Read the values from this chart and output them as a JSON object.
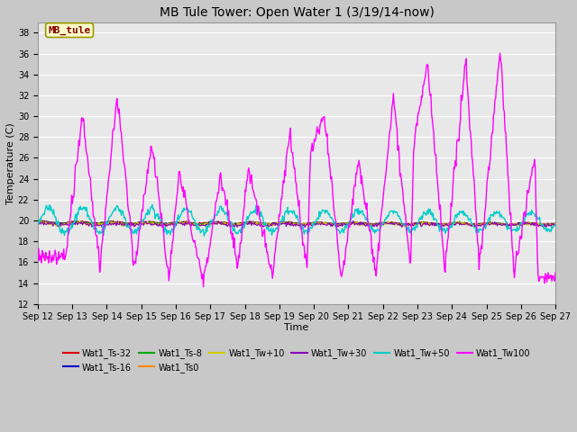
{
  "title": "MB Tule Tower: Open Water 1 (3/19/14-now)",
  "xlabel": "Time",
  "ylabel": "Temperature (C)",
  "xtick_labels": [
    "Sep 12",
    "Sep 13",
    "Sep 14",
    "Sep 15",
    "Sep 16",
    "Sep 17",
    "Sep 18",
    "Sep 19",
    "Sep 20",
    "Sep 21",
    "Sep 22",
    "Sep 23",
    "Sep 24",
    "Sep 25",
    "Sep 26",
    "Sep 27"
  ],
  "yticks": [
    12,
    14,
    16,
    18,
    20,
    22,
    24,
    26,
    28,
    30,
    32,
    34,
    36,
    38
  ],
  "ylim": [
    12,
    39
  ],
  "fig_facecolor": "#c8c8c8",
  "ax_facecolor": "#e8e8e8",
  "grid_color": "#ffffff",
  "series": [
    {
      "label": "Wat1_Ts-32",
      "color": "#dd0000"
    },
    {
      "label": "Wat1_Ts-16",
      "color": "#0000cc"
    },
    {
      "label": "Wat1_Ts-8",
      "color": "#00aa00"
    },
    {
      "label": "Wat1_Ts0",
      "color": "#ff8800"
    },
    {
      "label": "Wat1_Tw+10",
      "color": "#cccc00"
    },
    {
      "label": "Wat1_Tw+30",
      "color": "#8800bb"
    },
    {
      "label": "Wat1_Tw+50",
      "color": "#00cccc"
    },
    {
      "label": "Wat1_Tw100",
      "color": "#ff00ff"
    }
  ],
  "mb_tule_box_facecolor": "#ffffcc",
  "mb_tule_text_color": "#880000",
  "mb_tule_border_color": "#999900",
  "title_fontsize": 10,
  "tick_fontsize": 7,
  "ylabel_fontsize": 8,
  "xlabel_fontsize": 8,
  "legend_fontsize": 7
}
